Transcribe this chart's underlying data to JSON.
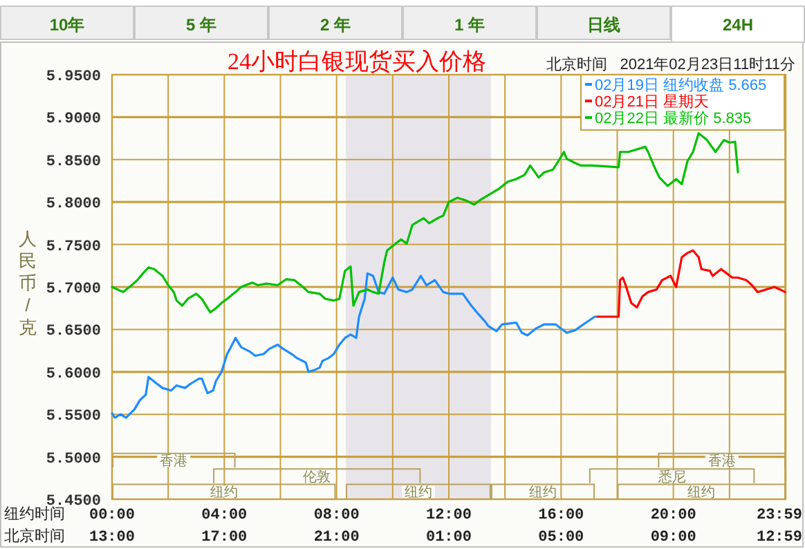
{
  "chart_data": {
    "type": "line",
    "title": "24小时白银现货买入价格",
    "subtitle": "北京时间   2021年02月23日11时11分",
    "xlabel": "纽约时间",
    "ylabel": "人民币/克",
    "annotations": [
      "10年",
      "5 年",
      "2 年",
      "1 年",
      "日线",
      "24H",
      "北京时间",
      "13:00",
      "17:00",
      "21:00",
      "01:00",
      "05:00",
      "09:00",
      "12:59",
      "纽约",
      "纽约",
      "纽约",
      "纽约",
      "伦敦",
      "悉尼",
      "香港",
      "香港"
    ],
    "xlim": [
      0,
      24
    ],
    "ylim": [
      5.45,
      5.95
    ],
    "xticks": [
      {
        "value": 0,
        "label": "00:00"
      },
      {
        "value": 2,
        "label": null
      },
      {
        "value": 4,
        "label": "04:00"
      },
      {
        "value": 6,
        "label": null
      },
      {
        "value": 8,
        "label": "08:00"
      },
      {
        "value": 10,
        "label": null
      },
      {
        "value": 12,
        "label": "12:00"
      },
      {
        "value": 14,
        "label": null
      },
      {
        "value": 16,
        "label": "16:00"
      },
      {
        "value": 18,
        "label": null
      },
      {
        "value": 20,
        "label": "20:00"
      },
      {
        "value": 22,
        "label": null
      },
      {
        "value": 23.98,
        "label": "23:59"
      }
    ],
    "yticks": [
      {
        "value": 5.45,
        "label": "5.4500"
      },
      {
        "value": 5.5,
        "label": "5.5000"
      },
      {
        "value": 5.55,
        "label": "5.5500"
      },
      {
        "value": 5.6,
        "label": "5.6000"
      },
      {
        "value": 5.65,
        "label": "5.6500"
      },
      {
        "value": 5.7,
        "label": "5.7000"
      },
      {
        "value": 5.75,
        "label": "5.7500"
      },
      {
        "value": 5.8,
        "label": "5.8000"
      },
      {
        "value": 5.85,
        "label": "5.8500"
      },
      {
        "value": 5.9,
        "label": "5.9000"
      },
      {
        "value": 5.95,
        "label": "5.9500"
      }
    ],
    "grid": true,
    "legend": "top right",
    "bands": [
      {
        "axis": "x",
        "from": 8.33,
        "to": 13.5,
        "color": "#e8e5ea"
      }
    ],
    "series": [
      {
        "name": "02月19日 纽约收盘 5.665",
        "color": "#1e8cff",
        "x": [
          0,
          0.1,
          0.3,
          0.5,
          0.8,
          1,
          1.2,
          1.3,
          1.6,
          1.8,
          2.1,
          2.3,
          2.6,
          2.8,
          3.1,
          3.2,
          3.4,
          3.6,
          3.7,
          3.9,
          4.1,
          4.2,
          4.4,
          4.6,
          4.9,
          5.1,
          5.4,
          5.6,
          5.9,
          6.1,
          6.4,
          6.6,
          6.9,
          7,
          7.2,
          7.4,
          7.5,
          7.7,
          7.9,
          8.1,
          8.3,
          8.5,
          8.7,
          8.8,
          9,
          9.1,
          9.3,
          9.5,
          9.7,
          10,
          10.2,
          10.5,
          10.7,
          11,
          11.2,
          11.5,
          11.8,
          12,
          12.3,
          12.5,
          12.8,
          13,
          13.3,
          13.4,
          13.7,
          13.9,
          14.4,
          14.6,
          14.8,
          15.1,
          15.4,
          15.8,
          16,
          16.2,
          16.5,
          16.8,
          17.2,
          17.3
        ],
        "values": [
          5.551,
          5.546,
          5.55,
          5.546,
          5.556,
          5.567,
          5.573,
          5.594,
          5.586,
          5.581,
          5.578,
          5.584,
          5.581,
          5.586,
          5.592,
          5.592,
          5.575,
          5.578,
          5.589,
          5.6,
          5.621,
          5.627,
          5.64,
          5.629,
          5.624,
          5.619,
          5.621,
          5.627,
          5.632,
          5.627,
          5.621,
          5.616,
          5.611,
          5.6,
          5.602,
          5.605,
          5.613,
          5.616,
          5.621,
          5.632,
          5.64,
          5.644,
          5.64,
          5.665,
          5.686,
          5.716,
          5.713,
          5.694,
          5.692,
          5.711,
          5.697,
          5.694,
          5.697,
          5.713,
          5.702,
          5.708,
          5.694,
          5.692,
          5.692,
          5.692,
          5.678,
          5.67,
          5.659,
          5.654,
          5.648,
          5.656,
          5.658,
          5.646,
          5.643,
          5.651,
          5.656,
          5.656,
          5.651,
          5.646,
          5.649,
          5.656,
          5.665,
          5.665
        ]
      },
      {
        "name": "02月21日 星期天",
        "color": "#ff0000",
        "x": [
          17.3,
          18.05,
          18.1,
          18.2,
          18.3,
          18.5,
          18.7,
          18.9,
          19.1,
          19.4,
          19.6,
          19.9,
          20.1,
          20.3,
          20.5,
          20.7,
          20.9,
          21,
          21.3,
          21.4,
          21.7,
          21.9,
          22.1,
          22.3,
          22.6,
          22.8,
          23,
          23.3,
          23.6,
          23.8,
          23.98
        ],
        "values": [
          5.665,
          5.665,
          5.708,
          5.711,
          5.702,
          5.681,
          5.676,
          5.689,
          5.694,
          5.697,
          5.708,
          5.713,
          5.7,
          5.735,
          5.74,
          5.743,
          5.735,
          5.721,
          5.719,
          5.713,
          5.721,
          5.716,
          5.711,
          5.711,
          5.708,
          5.702,
          5.694,
          5.697,
          5.7,
          5.697,
          5.694
        ]
      },
      {
        "name": "02月22日 最新价 5.835",
        "color": "#00c000",
        "x": [
          0,
          0.2,
          0.4,
          0.7,
          0.9,
          1.1,
          1.3,
          1.5,
          1.8,
          2,
          2.2,
          2.3,
          2.5,
          2.7,
          3,
          3.2,
          3.5,
          3.7,
          3.9,
          4.1,
          4.4,
          4.6,
          5,
          5.2,
          5.5,
          5.9,
          6.2,
          6.5,
          6.8,
          7,
          7.4,
          7.6,
          7.9,
          8.1,
          8.3,
          8.5,
          8.6,
          8.8,
          9.1,
          9.3,
          9.5,
          9.7,
          9.8,
          10.1,
          10.3,
          10.5,
          10.7,
          11.1,
          11.3,
          11.6,
          11.8,
          12,
          12.3,
          12.6,
          12.9,
          13.1,
          13.4,
          13.8,
          14.1,
          14.4,
          14.7,
          14.9,
          15.2,
          15.4,
          15.7,
          15.9,
          16.1,
          16.2,
          16.5,
          16.7,
          17.1,
          17.6,
          18.05,
          18.1,
          18.4,
          18.7,
          19,
          19.1,
          19.3,
          19.5,
          19.8,
          20.1,
          20.3,
          20.5,
          20.7,
          20.9,
          21.2,
          21.5,
          21.8,
          22,
          22.2,
          22.3
        ],
        "values": [
          5.7,
          5.697,
          5.694,
          5.702,
          5.708,
          5.716,
          5.723,
          5.721,
          5.713,
          5.702,
          5.694,
          5.684,
          5.678,
          5.686,
          5.692,
          5.686,
          5.67,
          5.675,
          5.681,
          5.686,
          5.694,
          5.7,
          5.705,
          5.702,
          5.704,
          5.702,
          5.709,
          5.708,
          5.7,
          5.694,
          5.692,
          5.686,
          5.684,
          5.686,
          5.719,
          5.724,
          5.678,
          5.694,
          5.697,
          5.694,
          5.692,
          5.729,
          5.743,
          5.751,
          5.756,
          5.751,
          5.773,
          5.781,
          5.775,
          5.781,
          5.784,
          5.8,
          5.805,
          5.802,
          5.797,
          5.802,
          5.808,
          5.816,
          5.824,
          5.827,
          5.832,
          5.843,
          5.829,
          5.835,
          5.838,
          5.848,
          5.859,
          5.851,
          5.846,
          5.843,
          5.843,
          5.842,
          5.841,
          5.859,
          5.859,
          5.862,
          5.865,
          5.859,
          5.843,
          5.829,
          5.819,
          5.827,
          5.821,
          5.848,
          5.859,
          5.881,
          5.873,
          5.859,
          5.873,
          5.87,
          5.871,
          5.835
        ]
      }
    ]
  }
}
